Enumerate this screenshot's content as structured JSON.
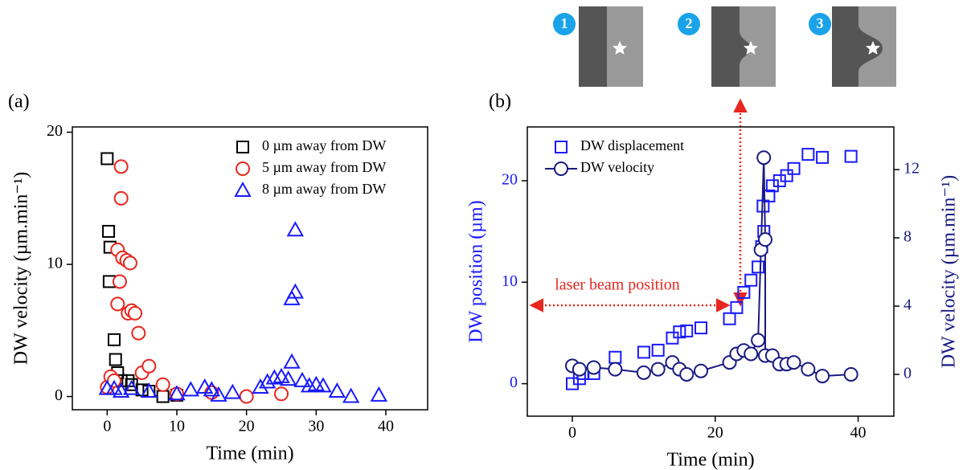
{
  "insets": {
    "labels": [
      "1",
      "2",
      "3"
    ]
  },
  "chart_data": [
    {
      "type": "scatter",
      "panel_label": "(a)",
      "x_label": "Time (min)",
      "y_label": "DW velocity (µm.min⁻¹)",
      "xlim": [
        -5,
        46
      ],
      "ylim": [
        -1,
        20.4
      ],
      "xticks": [
        0,
        10,
        20,
        30,
        40
      ],
      "yticks": [
        0,
        10,
        20
      ],
      "legend": "upper right",
      "series": [
        {
          "name": "0 µm away from DW",
          "color": "#000000",
          "marker": "square",
          "x": [
            0,
            0.2,
            0.4,
            0.3,
            1,
            1.2,
            1.5,
            2,
            3,
            3.5,
            5,
            6,
            8,
            10
          ],
          "y": [
            18,
            12.5,
            11.3,
            8.7,
            4.3,
            2.8,
            1.8,
            1.2,
            1.2,
            0.9,
            0.5,
            0.4,
            0,
            0.1
          ]
        },
        {
          "name": "5 µm away from DW",
          "color": "#e8261f",
          "marker": "circle",
          "x": [
            0,
            0.5,
            1,
            1.5,
            1.5,
            1.8,
            2,
            2,
            2.2,
            2.8,
            3.3,
            3,
            3.5,
            4,
            4.5,
            5,
            6,
            8,
            10,
            15,
            20,
            25
          ],
          "y": [
            0.7,
            1.5,
            1.2,
            11.1,
            7,
            8.7,
            17.4,
            15,
            10.5,
            10.3,
            10.1,
            6.3,
            6.5,
            6.3,
            4.8,
            1.8,
            2.3,
            0.9,
            0.2,
            0.3,
            0,
            0.2
          ]
        },
        {
          "name": "8 µm away from DW",
          "color": "#1a1aff",
          "marker": "triangle",
          "x": [
            0,
            1,
            2,
            3.5,
            6,
            10,
            12,
            14,
            15,
            16,
            18,
            22,
            23,
            24,
            25,
            26,
            26.5,
            26.5,
            27,
            27,
            28,
            29,
            30,
            31,
            33,
            35,
            39
          ],
          "y": [
            0.6,
            0.6,
            0.4,
            0.6,
            0.4,
            0.2,
            0.5,
            0.7,
            0.5,
            0.1,
            0.3,
            0.7,
            1.1,
            1.4,
            1.5,
            1.3,
            2.6,
            7.4,
            7.9,
            12.6,
            1.2,
            0.8,
            0.9,
            0.8,
            0.4,
            0,
            0.1
          ]
        }
      ]
    },
    {
      "type": "scatter",
      "panel_label": "(b)",
      "x_label": "Time (min)",
      "y_label": "DW position (µm)",
      "y2_label": "DW velocity (µm.min⁻¹)",
      "y_color": "#1a1aff",
      "y2_color": "#1a1a80",
      "annotation": "laser beam position",
      "xlim": [
        -6.3,
        45
      ],
      "ylim": [
        -3.2,
        25.3
      ],
      "y2lim": [
        -2.45,
        14.5
      ],
      "xticks": [
        0,
        20,
        40
      ],
      "yticks": [
        0,
        10,
        20
      ],
      "y2ticks": [
        0,
        4,
        8,
        12
      ],
      "legend": "upper left",
      "series": [
        {
          "name": "DW displacement",
          "color": "#1a1aff",
          "marker": "square",
          "x": [
            0,
            1,
            1.5,
            3,
            6,
            10,
            12,
            14,
            15,
            16,
            18,
            22,
            23,
            24,
            25,
            26,
            26.5,
            26.8,
            26.7,
            27.5,
            28,
            29,
            30,
            31,
            33,
            35,
            39
          ],
          "y": [
            0,
            0.5,
            1,
            1,
            2.6,
            3.1,
            3.3,
            4.5,
            5.1,
            5.2,
            5.5,
            6.4,
            7.5,
            9,
            10.2,
            11.5,
            13.5,
            15,
            17.5,
            18.5,
            19.5,
            20,
            20.5,
            21.2,
            22.6,
            22.3,
            22.4
          ]
        },
        {
          "name": "DW velocity",
          "color": "#1a1a80",
          "marker": "circle",
          "line": true,
          "axis": "y2",
          "x": [
            0,
            1,
            3,
            6,
            10,
            12,
            14,
            15,
            16,
            18,
            22,
            23,
            24,
            25,
            26,
            26.4,
            26.8,
            27,
            27,
            28,
            29,
            30,
            31,
            33,
            35,
            39
          ],
          "y": [
            0.5,
            0.3,
            0.4,
            0.3,
            0.1,
            0.3,
            0.7,
            0.3,
            0,
            0.2,
            0.7,
            1.2,
            1.4,
            1.2,
            2,
            7.3,
            12.7,
            7.9,
            1.1,
            1.1,
            0.6,
            0.6,
            0.7,
            0.3,
            -0.1,
            0
          ]
        }
      ]
    }
  ]
}
